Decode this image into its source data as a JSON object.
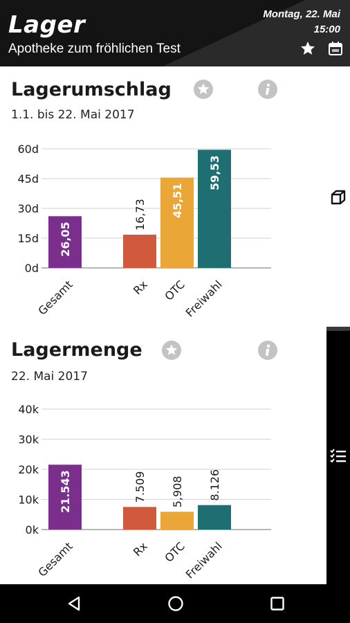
{
  "header": {
    "title": "Lager",
    "subtitle": "Apotheke zum fröhlichen Test",
    "date": "Montag, 22. Mai",
    "time": "15:00",
    "icons": [
      "star-icon",
      "calendar-icon"
    ]
  },
  "rail": {
    "icons": [
      "box-icon",
      "checklist-icon"
    ]
  },
  "cards": [
    {
      "title": "Lagerumschlag",
      "subtitle": "1.1. bis 22. Mai 2017",
      "icons": [
        "star-icon",
        "info-icon"
      ]
    },
    {
      "title": "Lagermenge",
      "subtitle": "22. Mai 2017",
      "icons": [
        "star-icon",
        "info-icon"
      ]
    }
  ],
  "colors": {
    "gesamt": "#7b2f8c",
    "rx": "#d15a3c",
    "otc": "#eaa636",
    "freiwahl": "#1f6e72",
    "grid": "#d9d9d9",
    "axis": "#9e9e9e"
  },
  "chart_data": [
    {
      "type": "bar",
      "categories": [
        "Gesamt",
        "Rx",
        "OTC",
        "Freiwahl"
      ],
      "values": [
        26.05,
        16.73,
        45.51,
        59.53
      ],
      "value_labels": [
        "26,05",
        "16,73",
        "45,51",
        "59,53"
      ],
      "yticks": [
        "0d",
        "15d",
        "30d",
        "45d",
        "60d"
      ],
      "ylim": [
        0,
        60
      ],
      "grid": true
    },
    {
      "type": "bar",
      "categories": [
        "Gesamt",
        "Rx",
        "OTC",
        "Freiwahl"
      ],
      "values": [
        21543,
        7509,
        5908,
        8126
      ],
      "value_labels": [
        "21.543",
        "7.509",
        "5,908",
        "8.126"
      ],
      "yticks": [
        "0k",
        "10k",
        "20k",
        "30k",
        "40k"
      ],
      "ylim": [
        0,
        40000
      ],
      "grid": true
    }
  ],
  "navbar": {
    "buttons": [
      "back-icon",
      "home-icon",
      "recents-icon"
    ]
  }
}
